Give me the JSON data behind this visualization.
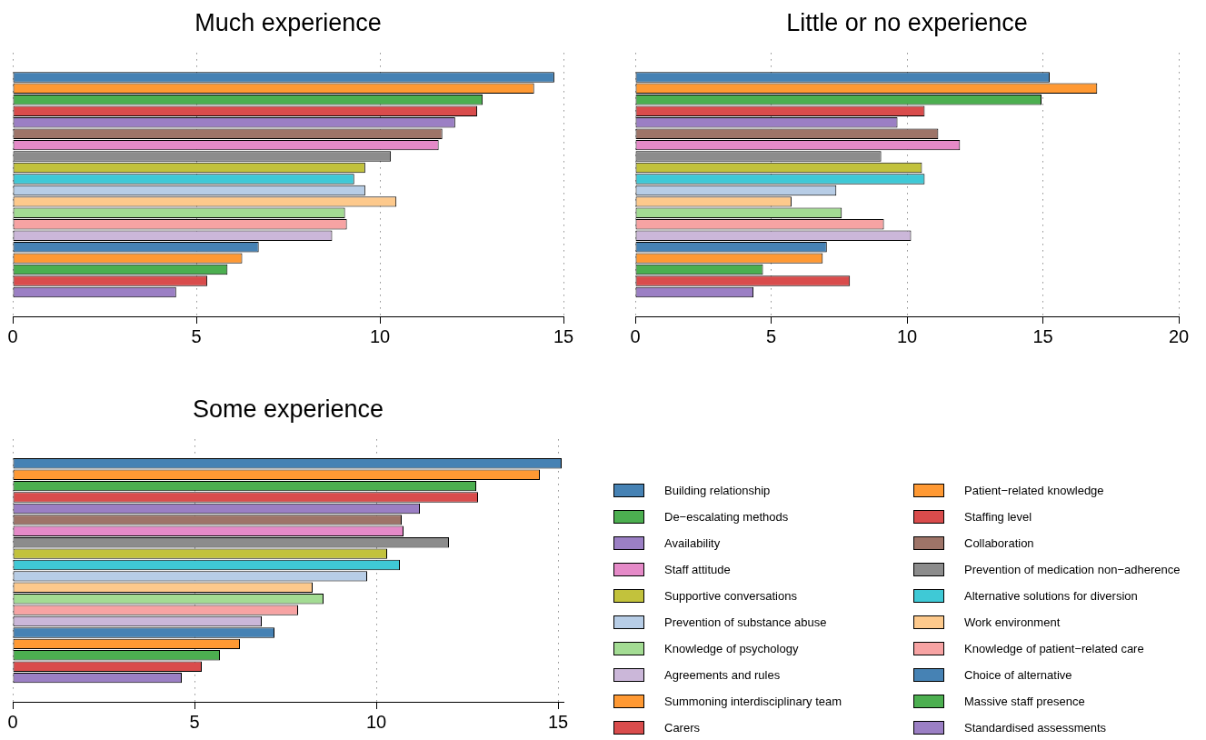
{
  "chart_data": [
    {
      "type": "bar",
      "orientation": "horizontal",
      "title": "Much experience",
      "categories": [
        null
      ],
      "xlim": [
        0,
        15
      ],
      "xticks": [
        0,
        5,
        10,
        15
      ],
      "grid": "x",
      "series": [
        {
          "color": "#4682b4",
          "values": [
            14.75
          ]
        },
        {
          "color": "#ff9933",
          "values": [
            14.2
          ]
        },
        {
          "color": "#4caf50",
          "values": [
            12.8
          ]
        },
        {
          "color": "#d94c4c",
          "values": [
            12.65
          ]
        },
        {
          "color": "#9b7fc4",
          "values": [
            12.05
          ]
        },
        {
          "color": "#9e7468",
          "values": [
            11.7
          ]
        },
        {
          "color": "#e58ac8",
          "values": [
            11.6
          ]
        },
        {
          "color": "#8c8c8c",
          "values": [
            10.3
          ]
        },
        {
          "color": "#c2c23c",
          "values": [
            9.6
          ]
        },
        {
          "color": "#3fc9d6",
          "values": [
            9.3
          ]
        },
        {
          "color": "#b7cde6",
          "values": [
            9.6
          ]
        },
        {
          "color": "#fdc98c",
          "values": [
            10.45
          ]
        },
        {
          "color": "#a3dc93",
          "values": [
            9.05
          ]
        },
        {
          "color": "#f7a3a3",
          "values": [
            9.1
          ]
        },
        {
          "color": "#cbb7d9",
          "values": [
            8.7
          ]
        },
        {
          "color": "#4682b4",
          "values": [
            6.7
          ]
        },
        {
          "color": "#ff9933",
          "values": [
            6.25
          ]
        },
        {
          "color": "#4caf50",
          "values": [
            5.85
          ]
        },
        {
          "color": "#d94c4c",
          "values": [
            5.3
          ]
        },
        {
          "color": "#9b7fc4",
          "values": [
            4.45
          ]
        }
      ]
    },
    {
      "type": "bar",
      "orientation": "horizontal",
      "title": "Little or no experience",
      "categories": [
        null
      ],
      "xlim": [
        0,
        20
      ],
      "xticks": [
        0,
        5,
        10,
        15,
        20
      ],
      "grid": "x",
      "series": [
        {
          "color": "#4682b4",
          "values": [
            15.25
          ]
        },
        {
          "color": "#ff9933",
          "values": [
            17.0
          ]
        },
        {
          "color": "#4caf50",
          "values": [
            14.95
          ]
        },
        {
          "color": "#d94c4c",
          "values": [
            10.65
          ]
        },
        {
          "color": "#9b7fc4",
          "values": [
            9.65
          ]
        },
        {
          "color": "#9e7468",
          "values": [
            11.15
          ]
        },
        {
          "color": "#e58ac8",
          "values": [
            11.95
          ]
        },
        {
          "color": "#8c8c8c",
          "values": [
            9.05
          ]
        },
        {
          "color": "#c2c23c",
          "values": [
            10.55
          ]
        },
        {
          "color": "#3fc9d6",
          "values": [
            10.65
          ]
        },
        {
          "color": "#b7cde6",
          "values": [
            7.4
          ]
        },
        {
          "color": "#fdc98c",
          "values": [
            5.75
          ]
        },
        {
          "color": "#a3dc93",
          "values": [
            7.6
          ]
        },
        {
          "color": "#f7a3a3",
          "values": [
            9.15
          ]
        },
        {
          "color": "#cbb7d9",
          "values": [
            10.15
          ]
        },
        {
          "color": "#4682b4",
          "values": [
            7.05
          ]
        },
        {
          "color": "#ff9933",
          "values": [
            6.9
          ]
        },
        {
          "color": "#4caf50",
          "values": [
            4.7
          ]
        },
        {
          "color": "#d94c4c",
          "values": [
            7.9
          ]
        },
        {
          "color": "#9b7fc4",
          "values": [
            4.35
          ]
        }
      ]
    },
    {
      "type": "bar",
      "orientation": "horizontal",
      "title": "Some experience",
      "categories": [
        null
      ],
      "xlim": [
        0,
        15.15
      ],
      "xticks": [
        0,
        5,
        10,
        15
      ],
      "grid": "x",
      "legend": "right",
      "series": [
        {
          "name": "Building relationship",
          "color": "#4682b4",
          "values": [
            15.1
          ]
        },
        {
          "name": "Patient−related knowledge",
          "color": "#ff9933",
          "values": [
            14.5
          ]
        },
        {
          "name": "De−escalating methods",
          "color": "#4caf50",
          "values": [
            12.75
          ]
        },
        {
          "name": "Staffing level",
          "color": "#d94c4c",
          "values": [
            12.8
          ]
        },
        {
          "name": "Availability",
          "color": "#9b7fc4",
          "values": [
            11.2
          ]
        },
        {
          "name": "Collaboration",
          "color": "#9e7468",
          "values": [
            10.7
          ]
        },
        {
          "name": "Staff attitude",
          "color": "#e58ac8",
          "values": [
            10.75
          ]
        },
        {
          "name": "Prevention of medication non−adherence",
          "color": "#8c8c8c",
          "values": [
            12.0
          ]
        },
        {
          "name": "Supportive conversations",
          "color": "#c2c23c",
          "values": [
            10.3
          ]
        },
        {
          "name": "Alternative solutions for diversion",
          "color": "#3fc9d6",
          "values": [
            10.65
          ]
        },
        {
          "name": "Prevention of substance abuse",
          "color": "#b7cde6",
          "values": [
            9.75
          ]
        },
        {
          "name": "Work environment",
          "color": "#fdc98c",
          "values": [
            8.25
          ]
        },
        {
          "name": "Knowledge of psychology",
          "color": "#a3dc93",
          "values": [
            8.55
          ]
        },
        {
          "name": "Knowledge of patient−related care",
          "color": "#f7a3a3",
          "values": [
            7.85
          ]
        },
        {
          "name": "Agreements and rules",
          "color": "#cbb7d9",
          "values": [
            6.85
          ]
        },
        {
          "name": "Choice of alternative",
          "color": "#4682b4",
          "values": [
            7.2
          ]
        },
        {
          "name": "Summoning interdisciplinary team",
          "color": "#ff9933",
          "values": [
            6.25
          ]
        },
        {
          "name": "Massive staff presence",
          "color": "#4caf50",
          "values": [
            5.7
          ]
        },
        {
          "name": "Carers",
          "color": "#d94c4c",
          "values": [
            5.2
          ]
        },
        {
          "name": "Standardised assessments",
          "color": "#9b7fc4",
          "values": [
            4.65
          ]
        }
      ]
    }
  ]
}
